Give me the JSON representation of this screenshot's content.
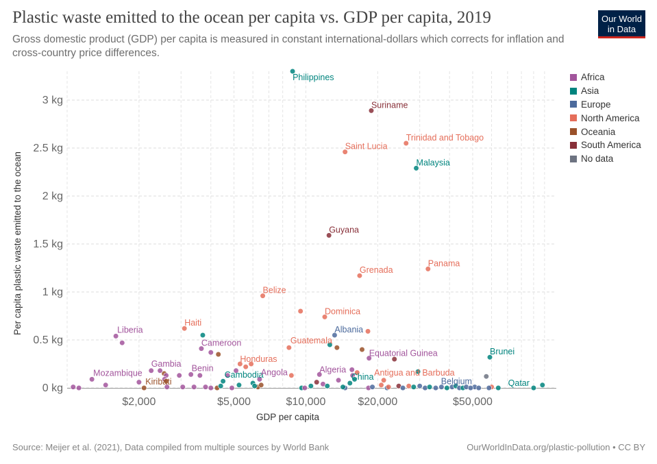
{
  "title": "Plastic waste emitted to the ocean per capita vs. GDP per capita, 2019",
  "subtitle": "Gross domestic product (GDP) per capita is measured in constant international-dollars which corrects for inflation and cross-country price differences.",
  "logo": {
    "line1": "Our World",
    "line2": "in Data"
  },
  "footer": {
    "source": "Source: Meijer et al. (2021), Data compiled from multiple sources by World Bank",
    "link": "OurWorldInData.org/plastic-pollution • CC BY"
  },
  "colors": {
    "Africa": "#a2559c",
    "Asia": "#00847e",
    "Europe": "#4c6a9c",
    "North America": "#e56e5a",
    "Oceania": "#9a5129",
    "South America": "#883039",
    "No data": "#6d7381"
  },
  "chart_data": {
    "type": "scatter",
    "xscale": "log",
    "xlabel": "GDP per capita",
    "ylabel": "Per capita plastic waste emitted to the ocean",
    "xlim": [
      1000,
      112000
    ],
    "ylim": [
      0,
      3.3
    ],
    "xticks": [
      {
        "value": 2000,
        "label": "$2,000"
      },
      {
        "value": 5000,
        "label": "$5,000"
      },
      {
        "value": 10000,
        "label": "$10,000"
      },
      {
        "value": 20000,
        "label": "$20,000"
      },
      {
        "value": 50000,
        "label": "$50,000"
      }
    ],
    "yticks": [
      {
        "value": 0,
        "label": "0 kg"
      },
      {
        "value": 0.5,
        "label": "0.5 kg"
      },
      {
        "value": 1,
        "label": "1 kg"
      },
      {
        "value": 1.5,
        "label": "1.5 kg"
      },
      {
        "value": 2,
        "label": "2 kg"
      },
      {
        "value": 2.5,
        "label": "2.5 kg"
      },
      {
        "value": 3,
        "label": "3 kg"
      }
    ],
    "legend": [
      "Africa",
      "Asia",
      "Europe",
      "North America",
      "Oceania",
      "South America",
      "No data"
    ],
    "legend_position": "right",
    "points": [
      {
        "label": "Philippines",
        "region": "Asia",
        "x": 8800,
        "y": 3.3
      },
      {
        "label": "Suriname",
        "region": "South America",
        "x": 18800,
        "y": 2.89
      },
      {
        "label": "Trinidad and Tobago",
        "region": "North America",
        "x": 26300,
        "y": 2.55
      },
      {
        "label": "Saint Lucia",
        "region": "North America",
        "x": 14600,
        "y": 2.46
      },
      {
        "label": "Malaysia",
        "region": "Asia",
        "x": 29000,
        "y": 2.29
      },
      {
        "label": "Guyana",
        "region": "South America",
        "x": 12500,
        "y": 1.59
      },
      {
        "label": "Panama",
        "region": "North America",
        "x": 32500,
        "y": 1.24
      },
      {
        "label": "Grenada",
        "region": "North America",
        "x": 16800,
        "y": 1.17
      },
      {
        "label": "Belize",
        "region": "North America",
        "x": 6600,
        "y": 0.96
      },
      {
        "label": "Dominica",
        "region": "North America",
        "x": 12000,
        "y": 0.74
      },
      {
        "label": "Haiti",
        "region": "North America",
        "x": 3100,
        "y": 0.62
      },
      {
        "label": "Liberia",
        "region": "Africa",
        "x": 1600,
        "y": 0.54
      },
      {
        "label": "Albania",
        "region": "Europe",
        "x": 13200,
        "y": 0.55
      },
      {
        "label": "Cameroon",
        "region": "Africa",
        "x": 3650,
        "y": 0.41
      },
      {
        "label": "Guatemala",
        "region": "North America",
        "x": 8500,
        "y": 0.42
      },
      {
        "label": "Honduras",
        "region": "North America",
        "x": 5300,
        "y": 0.25
      },
      {
        "label": "Equatorial Guinea",
        "region": "Africa",
        "x": 18400,
        "y": 0.31
      },
      {
        "label": "Brunei",
        "region": "Asia",
        "x": 59000,
        "y": 0.32
      },
      {
        "label": "Gambia",
        "region": "Africa",
        "x": 2250,
        "y": 0.18
      },
      {
        "label": "Benin",
        "region": "Africa",
        "x": 3300,
        "y": 0.14
      },
      {
        "label": "Mozambique",
        "region": "Africa",
        "x": 1270,
        "y": 0.09
      },
      {
        "label": "Kiribati",
        "region": "Oceania",
        "x": 2100,
        "y": 0.0
      },
      {
        "label": "Cambodia",
        "region": "Asia",
        "x": 4500,
        "y": 0.07
      },
      {
        "label": "Angola",
        "region": "Africa",
        "x": 6400,
        "y": 0.09
      },
      {
        "label": "Algeria",
        "region": "Africa",
        "x": 11400,
        "y": 0.14
      },
      {
        "label": "China",
        "region": "Asia",
        "x": 15300,
        "y": 0.05
      },
      {
        "label": "Antigua and Barbuda",
        "region": "North America",
        "x": 21200,
        "y": 0.08
      },
      {
        "label": "Belgium",
        "region": "Europe",
        "x": 51000,
        "y": 0.01
      },
      {
        "label": "Qatar",
        "region": "Asia",
        "x": 90000,
        "y": 0.0
      },
      {
        "label": "",
        "region": "Africa",
        "x": 1700,
        "y": 0.47
      },
      {
        "label": "",
        "region": "Asia",
        "x": 3700,
        "y": 0.55
      },
      {
        "label": "",
        "region": "Oceania",
        "x": 4300,
        "y": 0.35
      },
      {
        "label": "",
        "region": "Africa",
        "x": 4000,
        "y": 0.37
      },
      {
        "label": "",
        "region": "North America",
        "x": 9500,
        "y": 0.8
      },
      {
        "label": "",
        "region": "North America",
        "x": 18200,
        "y": 0.59
      },
      {
        "label": "",
        "region": "Oceania",
        "x": 17200,
        "y": 0.4
      },
      {
        "label": "",
        "region": "Oceania",
        "x": 13500,
        "y": 0.42
      },
      {
        "label": "",
        "region": "Asia",
        "x": 12600,
        "y": 0.45
      },
      {
        "label": "",
        "region": "South America",
        "x": 23500,
        "y": 0.3
      },
      {
        "label": "",
        "region": "Asia",
        "x": 29500,
        "y": 0.17
      },
      {
        "label": "",
        "region": "North America",
        "x": 5600,
        "y": 0.22
      },
      {
        "label": "",
        "region": "North America",
        "x": 5900,
        "y": 0.25
      },
      {
        "label": "",
        "region": "Africa",
        "x": 5100,
        "y": 0.18
      },
      {
        "label": "",
        "region": "Africa",
        "x": 4700,
        "y": 0.13
      },
      {
        "label": "",
        "region": "Oceania",
        "x": 2550,
        "y": 0.15
      },
      {
        "label": "",
        "region": "Africa",
        "x": 2450,
        "y": 0.18
      },
      {
        "label": "",
        "region": "Africa",
        "x": 2600,
        "y": 0.13
      },
      {
        "label": "",
        "region": "Africa",
        "x": 3600,
        "y": 0.13
      },
      {
        "label": "",
        "region": "Africa",
        "x": 2950,
        "y": 0.13
      },
      {
        "label": "",
        "region": "Africa",
        "x": 2000,
        "y": 0.06
      },
      {
        "label": "",
        "region": "Africa",
        "x": 1450,
        "y": 0.03
      },
      {
        "label": "",
        "region": "Africa",
        "x": 1060,
        "y": 0.01
      },
      {
        "label": "",
        "region": "Africa",
        "x": 1120,
        "y": 0.0
      },
      {
        "label": "",
        "region": "Africa",
        "x": 2560,
        "y": 0.09
      },
      {
        "label": "",
        "region": "Oceania",
        "x": 2600,
        "y": 0.07
      },
      {
        "label": "",
        "region": "Africa",
        "x": 2620,
        "y": 0.01
      },
      {
        "label": "",
        "region": "Africa",
        "x": 3050,
        "y": 0.01
      },
      {
        "label": "",
        "region": "Africa",
        "x": 3400,
        "y": 0.01
      },
      {
        "label": "",
        "region": "Africa",
        "x": 3800,
        "y": 0.01
      },
      {
        "label": "",
        "region": "Oceania",
        "x": 4250,
        "y": 0.0
      },
      {
        "label": "",
        "region": "Africa",
        "x": 4000,
        "y": 0.0
      },
      {
        "label": "",
        "region": "Asia",
        "x": 4400,
        "y": 0.02
      },
      {
        "label": "",
        "region": "Africa",
        "x": 4900,
        "y": 0.0
      },
      {
        "label": "",
        "region": "Asia",
        "x": 5250,
        "y": 0.03
      },
      {
        "label": "",
        "region": "Asia",
        "x": 6000,
        "y": 0.05
      },
      {
        "label": "",
        "region": "Oceania",
        "x": 6300,
        "y": 0.01
      },
      {
        "label": "",
        "region": "Oceania",
        "x": 6500,
        "y": 0.03
      },
      {
        "label": "",
        "region": "Asia",
        "x": 6100,
        "y": 0.02
      },
      {
        "label": "",
        "region": "North America",
        "x": 8700,
        "y": 0.13
      },
      {
        "label": "",
        "region": "Asia",
        "x": 9600,
        "y": 0.0
      },
      {
        "label": "",
        "region": "Africa",
        "x": 9900,
        "y": 0.0
      },
      {
        "label": "",
        "region": "Asia",
        "x": 10500,
        "y": 0.02
      },
      {
        "label": "",
        "region": "South America",
        "x": 11100,
        "y": 0.06
      },
      {
        "label": "",
        "region": "Africa",
        "x": 11800,
        "y": 0.04
      },
      {
        "label": "",
        "region": "Asia",
        "x": 12300,
        "y": 0.02
      },
      {
        "label": "",
        "region": "Africa",
        "x": 13700,
        "y": 0.08
      },
      {
        "label": "",
        "region": "Europe",
        "x": 14600,
        "y": 0.0
      },
      {
        "label": "",
        "region": "Asia",
        "x": 14300,
        "y": 0.01
      },
      {
        "label": "",
        "region": "Africa",
        "x": 15700,
        "y": 0.13
      },
      {
        "label": "",
        "region": "North America",
        "x": 16400,
        "y": 0.16
      },
      {
        "label": "",
        "region": "Asia",
        "x": 16000,
        "y": 0.09
      },
      {
        "label": "",
        "region": "Africa",
        "x": 15600,
        "y": 0.19
      },
      {
        "label": "",
        "region": "Africa",
        "x": 18300,
        "y": 0.0
      },
      {
        "label": "",
        "region": "Europe",
        "x": 19000,
        "y": 0.01
      },
      {
        "label": "",
        "region": "North America",
        "x": 20700,
        "y": 0.03
      },
      {
        "label": "",
        "region": "Europe",
        "x": 21900,
        "y": 0.0
      },
      {
        "label": "",
        "region": "North America",
        "x": 22200,
        "y": 0.01
      },
      {
        "label": "",
        "region": "South America",
        "x": 24500,
        "y": 0.02
      },
      {
        "label": "",
        "region": "Europe",
        "x": 25500,
        "y": 0.0
      },
      {
        "label": "",
        "region": "North America",
        "x": 27000,
        "y": 0.02
      },
      {
        "label": "",
        "region": "Asia",
        "x": 28300,
        "y": 0.01
      },
      {
        "label": "",
        "region": "Europe",
        "x": 30000,
        "y": 0.02
      },
      {
        "label": "",
        "region": "Europe",
        "x": 31600,
        "y": 0.0
      },
      {
        "label": "",
        "region": "Asia",
        "x": 33000,
        "y": 0.01
      },
      {
        "label": "",
        "region": "Europe",
        "x": 35000,
        "y": 0.0
      },
      {
        "label": "",
        "region": "Europe",
        "x": 37000,
        "y": 0.01
      },
      {
        "label": "",
        "region": "Asia",
        "x": 39000,
        "y": 0.0
      },
      {
        "label": "",
        "region": "Europe",
        "x": 41000,
        "y": 0.01
      },
      {
        "label": "",
        "region": "Asia",
        "x": 42500,
        "y": 0.02
      },
      {
        "label": "",
        "region": "Europe",
        "x": 44000,
        "y": 0.0
      },
      {
        "label": "",
        "region": "Asia",
        "x": 45500,
        "y": 0.0
      },
      {
        "label": "",
        "region": "Europe",
        "x": 47000,
        "y": 0.01
      },
      {
        "label": "",
        "region": "Europe",
        "x": 49000,
        "y": 0.0
      },
      {
        "label": "",
        "region": "Europe",
        "x": 53000,
        "y": 0.0
      },
      {
        "label": "",
        "region": "No data",
        "x": 57000,
        "y": 0.12
      },
      {
        "label": "",
        "region": "North America",
        "x": 60000,
        "y": 0.01
      },
      {
        "label": "",
        "region": "Europe",
        "x": 58500,
        "y": 0.0
      },
      {
        "label": "",
        "region": "Asia",
        "x": 64000,
        "y": 0.0
      },
      {
        "label": "",
        "region": "Asia",
        "x": 98000,
        "y": 0.03
      }
    ]
  }
}
